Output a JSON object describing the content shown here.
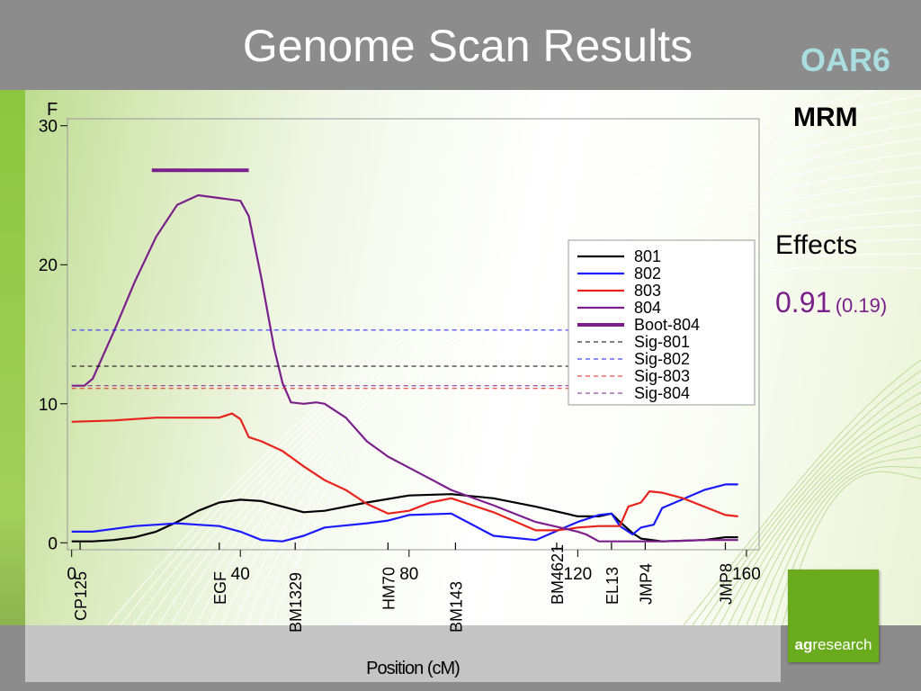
{
  "slide": {
    "title": "Genome Scan Results",
    "chromosome": "OAR6",
    "method": "MRM",
    "effects_label": "Effects",
    "effect_value": "0.91",
    "effect_se": "(0.19)",
    "logo_bold": "ag",
    "logo_light": "research"
  },
  "colors": {
    "801": "#000000",
    "802": "#1a1aff",
    "803": "#e8231b",
    "804": "#7a1f8c",
    "header": "#8c8c8c",
    "chromosome_label": "#a9dde0",
    "logo": "#6aaa1d"
  },
  "chart_data": {
    "type": "line",
    "xlabel": "Position (cM)",
    "ylabel": "F",
    "xlim": [
      -1,
      163
    ],
    "ylim": [
      -0.5,
      30.5
    ],
    "x_ticks": [
      0,
      40,
      80,
      120,
      160
    ],
    "y_ticks": [
      0,
      10,
      20,
      30
    ],
    "markers": [
      {
        "name": "CP125",
        "x": 2
      },
      {
        "name": "EGF",
        "x": 35
      },
      {
        "name": "BM1329",
        "x": 53
      },
      {
        "name": "HM70",
        "x": 75
      },
      {
        "name": "BM143",
        "x": 91
      },
      {
        "name": "BM4621",
        "x": 115
      },
      {
        "name": "EL13",
        "x": 128
      },
      {
        "name": "JMP4",
        "x": 136
      },
      {
        "name": "JMP8",
        "x": 155
      }
    ],
    "legend": {
      "placement": "right",
      "entries": [
        "801",
        "802",
        "803",
        "804",
        "Boot-804",
        "Sig-801",
        "Sig-802",
        "Sig-803",
        "Sig-804"
      ]
    },
    "series": [
      {
        "name": "801",
        "x": [
          0,
          5,
          10,
          15,
          20,
          25,
          30,
          35,
          40,
          45,
          50,
          55,
          60,
          70,
          80,
          90,
          100,
          110,
          120,
          125,
          128,
          130,
          133,
          135,
          140,
          150,
          155,
          158
        ],
        "y": [
          0.1,
          0.1,
          0.2,
          0.4,
          0.8,
          1.5,
          2.3,
          2.9,
          3.1,
          3.0,
          2.6,
          2.2,
          2.3,
          2.9,
          3.4,
          3.5,
          3.2,
          2.6,
          1.9,
          1.9,
          2.1,
          1.5,
          0.7,
          0.3,
          0.1,
          0.2,
          0.4,
          0.4
        ]
      },
      {
        "name": "802",
        "x": [
          0,
          5,
          10,
          15,
          20,
          25,
          30,
          35,
          40,
          45,
          50,
          55,
          60,
          70,
          75,
          80,
          90,
          100,
          110,
          120,
          125,
          128,
          130,
          133,
          135,
          138,
          140,
          150,
          155,
          158
        ],
        "y": [
          0.8,
          0.8,
          1.0,
          1.2,
          1.3,
          1.4,
          1.3,
          1.2,
          0.8,
          0.2,
          0.1,
          0.5,
          1.1,
          1.4,
          1.6,
          2.0,
          2.1,
          0.5,
          0.2,
          1.5,
          2.0,
          2.1,
          1.2,
          0.6,
          1.1,
          1.3,
          2.5,
          3.8,
          4.2,
          4.2
        ]
      },
      {
        "name": "803",
        "x": [
          0,
          10,
          20,
          30,
          35,
          38,
          40,
          42,
          45,
          50,
          55,
          60,
          65,
          70,
          75,
          80,
          85,
          90,
          100,
          110,
          115,
          118,
          120,
          125,
          130,
          132,
          135,
          137,
          140,
          145,
          150,
          155,
          158
        ],
        "y": [
          8.7,
          8.8,
          9.0,
          9.0,
          9.0,
          9.3,
          8.9,
          7.6,
          7.3,
          6.6,
          5.5,
          4.5,
          3.8,
          2.8,
          2.1,
          2.3,
          2.9,
          3.2,
          2.2,
          0.9,
          0.9,
          1.0,
          1.1,
          1.2,
          1.2,
          2.6,
          2.9,
          3.7,
          3.6,
          3.2,
          2.6,
          2.0,
          1.9
        ]
      },
      {
        "name": "804",
        "x": [
          0,
          3,
          5,
          10,
          15,
          20,
          25,
          30,
          35,
          40,
          42,
          45,
          48,
          50,
          52,
          55,
          58,
          60,
          65,
          70,
          75,
          80,
          85,
          90,
          100,
          110,
          120,
          122,
          125,
          130,
          135,
          140,
          150,
          158
        ],
        "y": [
          11.3,
          11.3,
          11.8,
          15.2,
          18.8,
          22.0,
          24.3,
          25.0,
          24.8,
          24.6,
          23.5,
          19.0,
          14.0,
          11.5,
          10.1,
          10.0,
          10.1,
          10.0,
          9.0,
          7.3,
          6.2,
          5.4,
          4.6,
          3.8,
          2.7,
          1.5,
          0.8,
          0.6,
          0.1,
          0.1,
          0.1,
          0.1,
          0.2,
          0.2
        ]
      },
      {
        "name": "Boot-804",
        "x": [
          19,
          42
        ],
        "y": [
          26.8,
          26.8
        ]
      },
      {
        "name": "Sig-801",
        "x": [
          0,
          158
        ],
        "y": [
          12.7,
          12.7
        ]
      },
      {
        "name": "Sig-802",
        "x": [
          0,
          158
        ],
        "y": [
          15.3,
          15.3
        ]
      },
      {
        "name": "Sig-803",
        "x": [
          0,
          158
        ],
        "y": [
          11.1,
          11.1
        ]
      },
      {
        "name": "Sig-804",
        "x": [
          0,
          158
        ],
        "y": [
          11.3,
          11.3
        ]
      }
    ]
  }
}
